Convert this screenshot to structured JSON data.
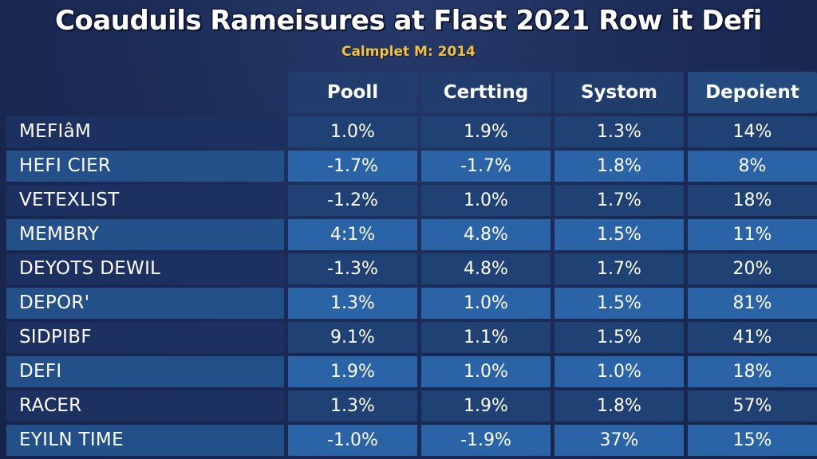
{
  "chart_data": {
    "type": "table",
    "title": "Coauduils Rameisures at Flast 2021 Row it Defi",
    "subtitle": "Calmplet M: 2014",
    "columns": [
      "Pooll",
      "Certting",
      "Systom",
      "Depoient"
    ],
    "rows": [
      {
        "label": "MEFIâM",
        "values": [
          "1.0%",
          "1.9%",
          "1.3%",
          "14%"
        ]
      },
      {
        "label": "HEFI CIER",
        "values": [
          "-1.7%",
          "-1.7%",
          "1.8%",
          "8%"
        ]
      },
      {
        "label": "VETEXLIST",
        "values": [
          "-1.2%",
          "1.0%",
          "1.7%",
          "18%"
        ]
      },
      {
        "label": "MEMBRY",
        "values": [
          "4:1%",
          "4.8%",
          "1.5%",
          "11%"
        ]
      },
      {
        "label": "DEYOTS DEWIL",
        "values": [
          "-1.3%",
          "4.8%",
          "1.7%",
          "20%"
        ]
      },
      {
        "label": "DEPOR'",
        "values": [
          "1.3%",
          "1.0%",
          "1.5%",
          "81%"
        ]
      },
      {
        "label": "SIDPIBF",
        "values": [
          "9.1%",
          "1.1%",
          "1.5%",
          "41%"
        ]
      },
      {
        "label": "DEFI",
        "values": [
          "1.9%",
          "1.0%",
          "1.0%",
          "18%"
        ]
      },
      {
        "label": "RACER",
        "values": [
          "1.3%",
          "1.9%",
          "1.8%",
          "57%"
        ]
      },
      {
        "label": "EYILN TIME",
        "values": [
          "-1.0%",
          "-1.9%",
          "37%",
          "15%"
        ]
      }
    ]
  },
  "colors": {
    "background": "#1c2c57",
    "title": "#ffffff",
    "subtitle": "#f3c23a",
    "header_cell": "#203d6e",
    "header_accent": "#234b80",
    "row_dark": "#1f4173",
    "row_light": "#2a64a6"
  }
}
